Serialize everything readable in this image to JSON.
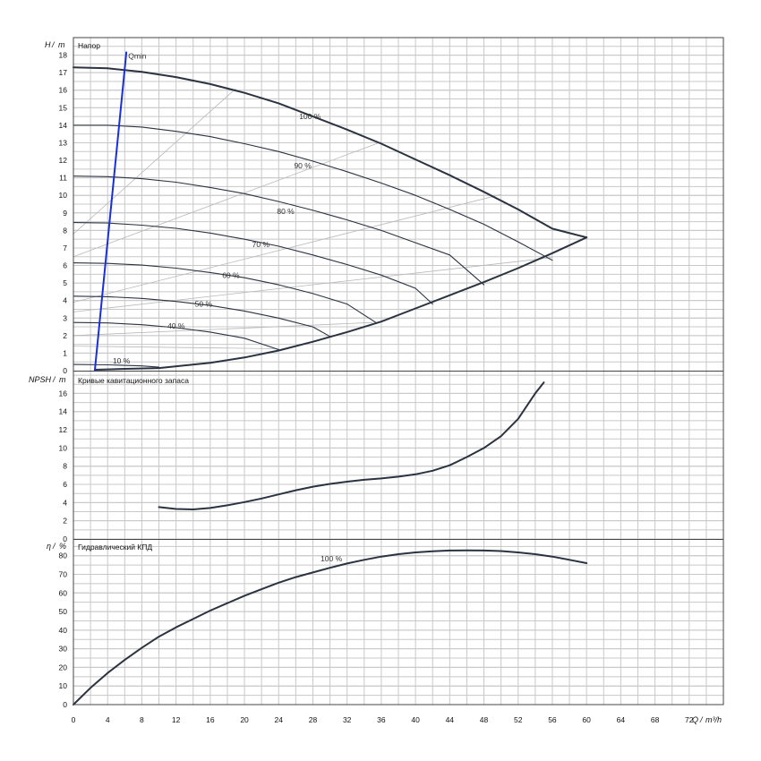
{
  "chart_data": [
    {
      "id": "head",
      "type": "line",
      "title": "Напор",
      "ylabel_sym": "H",
      "ylabel_unit": "m",
      "xlabel_sym": "Q",
      "xlabel_unit": "m³/h",
      "xlim": [
        0,
        76
      ],
      "ylim": [
        0,
        19
      ],
      "xticks": [
        0,
        4,
        8,
        12,
        16,
        20,
        24,
        28,
        32,
        36,
        40,
        44,
        48,
        52,
        56,
        60,
        64,
        68,
        72
      ],
      "yticks": [
        0,
        1,
        2,
        3,
        4,
        5,
        6,
        7,
        8,
        9,
        10,
        11,
        12,
        13,
        14,
        15,
        16,
        17,
        18
      ],
      "grid": true,
      "series": [
        {
          "name": "100 %",
          "label_at": [
            26.4,
            14.5
          ],
          "x": [
            0,
            4,
            8,
            12,
            16,
            20,
            24,
            28,
            32,
            36,
            40,
            44,
            48,
            52,
            56,
            60
          ],
          "y": [
            17.3,
            17.25,
            17.05,
            16.75,
            16.35,
            15.85,
            15.25,
            14.5,
            13.75,
            12.95,
            12.05,
            11.15,
            10.2,
            9.2,
            8.1,
            7.6
          ]
        },
        {
          "name": "90 %",
          "label_at": [
            25.8,
            11.7
          ],
          "x": [
            0,
            4,
            8,
            12,
            16,
            20,
            24,
            28,
            32,
            36,
            40,
            44,
            48,
            52,
            56
          ],
          "y": [
            14.0,
            14.0,
            13.9,
            13.65,
            13.35,
            12.95,
            12.5,
            11.95,
            11.35,
            10.7,
            10.0,
            9.2,
            8.35,
            7.35,
            6.3
          ]
        },
        {
          "name": "80 %",
          "label_at": [
            23.8,
            9.1
          ],
          "x": [
            0,
            4,
            8,
            12,
            16,
            20,
            24,
            28,
            32,
            36,
            40,
            44,
            48
          ],
          "y": [
            11.1,
            11.07,
            10.95,
            10.75,
            10.45,
            10.1,
            9.65,
            9.15,
            8.6,
            8.0,
            7.3,
            6.6,
            4.9
          ]
        },
        {
          "name": "70 %",
          "label_at": [
            20.9,
            7.2
          ],
          "x": [
            0,
            4,
            8,
            12,
            16,
            20,
            24,
            28,
            32,
            36,
            40,
            42
          ],
          "y": [
            8.45,
            8.42,
            8.3,
            8.12,
            7.85,
            7.5,
            7.1,
            6.6,
            6.05,
            5.45,
            4.7,
            3.8
          ]
        },
        {
          "name": "60 %",
          "label_at": [
            17.4,
            5.45
          ],
          "x": [
            0,
            4,
            8,
            12,
            16,
            20,
            24,
            28,
            32,
            35.5
          ],
          "y": [
            6.15,
            6.12,
            6.02,
            5.85,
            5.6,
            5.3,
            4.9,
            4.4,
            3.8,
            2.7
          ]
        },
        {
          "name": "50 %",
          "label_at": [
            14.2,
            3.8
          ],
          "x": [
            0,
            4,
            8,
            12,
            16,
            20,
            24,
            28,
            30
          ],
          "y": [
            4.25,
            4.22,
            4.12,
            3.95,
            3.72,
            3.4,
            3.0,
            2.5,
            1.95
          ]
        },
        {
          "name": "40 %",
          "label_at": [
            11.0,
            2.55
          ],
          "x": [
            0,
            4,
            8,
            12,
            16,
            20,
            24
          ],
          "y": [
            2.75,
            2.72,
            2.62,
            2.45,
            2.2,
            1.85,
            1.2
          ]
        },
        {
          "name": "10 %",
          "label_at": [
            4.6,
            0.55
          ],
          "x": [
            0,
            4,
            8,
            10
          ],
          "y": [
            0.35,
            0.33,
            0.27,
            0.2
          ]
        }
      ],
      "limit_curve": {
        "x": [
          2.5,
          6,
          10,
          16,
          20,
          24,
          28,
          32,
          36,
          40,
          44,
          48,
          52,
          56,
          60
        ],
        "y": [
          0.05,
          0.1,
          0.15,
          0.45,
          0.75,
          1.15,
          1.65,
          2.2,
          2.8,
          3.55,
          4.3,
          5.05,
          5.85,
          6.7,
          7.6
        ]
      },
      "guide_lines": [
        {
          "x": [
            0,
            19
          ],
          "y": [
            7.8,
            16.1
          ]
        },
        {
          "x": [
            0,
            36
          ],
          "y": [
            6.5,
            13.05
          ]
        },
        {
          "x": [
            0,
            50
          ],
          "y": [
            3.9,
            10.05
          ]
        },
        {
          "x": [
            0,
            56
          ],
          "y": [
            3.35,
            6.45
          ]
        },
        {
          "x": [
            0,
            35
          ],
          "y": [
            2.0,
            2.75
          ]
        },
        {
          "x": [
            0,
            24
          ],
          "y": [
            1.4,
            1.25
          ]
        }
      ],
      "qmin": {
        "label": "Qmin",
        "x": [
          2.5,
          6.2
        ],
        "y": [
          0,
          18.2
        ]
      }
    },
    {
      "id": "npsh",
      "type": "line",
      "title": "Кривые кавитационного запаса",
      "ylabel_sym": "NPSH",
      "ylabel_unit": "m",
      "ylim": [
        0,
        18.5
      ],
      "yticks": [
        0,
        2,
        4,
        6,
        8,
        10,
        12,
        14,
        16
      ],
      "grid": true,
      "series": [
        {
          "name": "",
          "x": [
            10,
            12,
            14,
            16,
            18,
            20,
            22,
            24,
            26,
            28,
            30,
            32,
            34,
            36,
            38,
            40,
            42,
            44,
            46,
            48,
            50,
            52,
            54,
            55
          ],
          "y": [
            3.5,
            3.3,
            3.25,
            3.4,
            3.7,
            4.05,
            4.45,
            4.9,
            5.35,
            5.75,
            6.05,
            6.3,
            6.5,
            6.65,
            6.85,
            7.1,
            7.5,
            8.1,
            9.0,
            10.0,
            11.3,
            13.2,
            16.0,
            17.2
          ]
        }
      ]
    },
    {
      "id": "eff",
      "type": "line",
      "title": "Гидравлический КПД",
      "ylabel_sym": "η",
      "ylabel_unit": "%",
      "ylim": [
        0,
        89
      ],
      "yticks": [
        0,
        10,
        20,
        30,
        40,
        50,
        60,
        70,
        80
      ],
      "grid": true,
      "series": [
        {
          "name": "100 %",
          "label_at": [
            28.9,
            78.5
          ],
          "x": [
            0,
            2,
            4,
            6,
            8,
            10,
            12,
            14,
            16,
            18,
            20,
            22,
            24,
            26,
            28,
            30,
            32,
            34,
            36,
            38,
            40,
            42,
            44,
            46,
            48,
            50,
            52,
            54,
            56,
            58,
            60
          ],
          "y": [
            0,
            9,
            17,
            24,
            30.5,
            36.5,
            41.5,
            46,
            50.5,
            54.5,
            58.5,
            62,
            65.5,
            68.5,
            71,
            73.5,
            75.8,
            77.8,
            79.5,
            80.8,
            81.8,
            82.4,
            82.8,
            82.9,
            82.8,
            82.5,
            81.8,
            80.8,
            79.5,
            77.8,
            76.0
          ]
        }
      ]
    }
  ]
}
